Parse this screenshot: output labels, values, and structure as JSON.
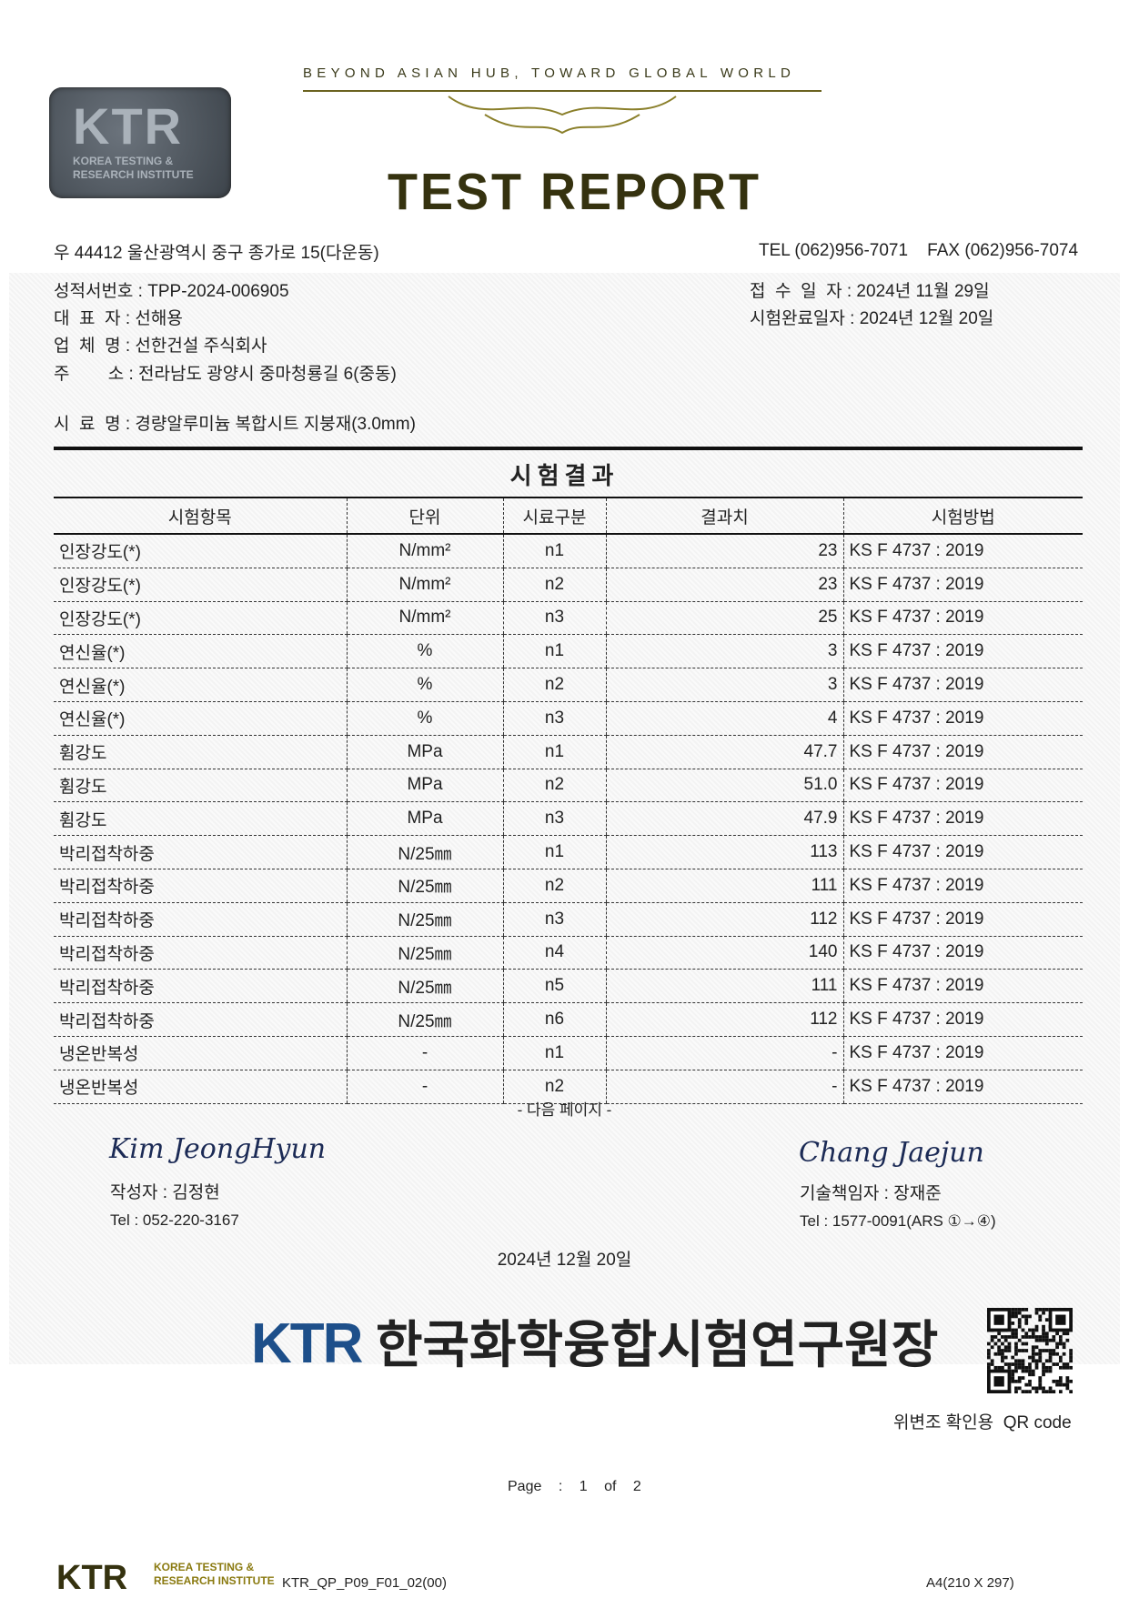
{
  "header": {
    "slogan": "BEYOND ASIAN HUB, TOWARD GLOBAL WORLD",
    "logo_text": "KTR",
    "logo_subtitle": "KOREA TESTING & RESEARCH INSTITUTE",
    "title": "TEST REPORT",
    "address": "우 44412 울산광역시 중구 종가로 15(다운동)",
    "contact": "TEL (062)956-7071    FAX (062)956-7074"
  },
  "info": {
    "report_no": "성적서번호 : TPP-2024-006905",
    "representative": "대  표  자 : 선해용",
    "company": "업  체  명 : 선한건설 주식회사",
    "address": "주        소 : 전라남도 광양시 중마청룡길 6(중동)",
    "sample": "시  료  명 : 경량알루미늄 복합시트 지붕재(3.0mm)",
    "received": "접  수  일  자 : 2024년 11월 29일",
    "completed": "시험완료일자 : 2024년 12월 20일"
  },
  "results": {
    "section_title": "시험결과",
    "columns": [
      "시험항목",
      "단위",
      "시료구분",
      "결과치",
      "시험방법"
    ],
    "rows": [
      [
        "인장강도(*)",
        "N/mm²",
        "n1",
        "23",
        "KS F 4737 : 2019"
      ],
      [
        "인장강도(*)",
        "N/mm²",
        "n2",
        "23",
        "KS F 4737 : 2019"
      ],
      [
        "인장강도(*)",
        "N/mm²",
        "n3",
        "25",
        "KS F 4737 : 2019"
      ],
      [
        "연신율(*)",
        "%",
        "n1",
        "3",
        "KS F 4737 : 2019"
      ],
      [
        "연신율(*)",
        "%",
        "n2",
        "3",
        "KS F 4737 : 2019"
      ],
      [
        "연신율(*)",
        "%",
        "n3",
        "4",
        "KS F 4737 : 2019"
      ],
      [
        "휨강도",
        "MPa",
        "n1",
        "47.7",
        "KS F 4737 : 2019"
      ],
      [
        "휨강도",
        "MPa",
        "n2",
        "51.0",
        "KS F 4737 : 2019"
      ],
      [
        "휨강도",
        "MPa",
        "n3",
        "47.9",
        "KS F 4737 : 2019"
      ],
      [
        "박리접착하중",
        "N/25㎜",
        "n1",
        "113",
        "KS F 4737 : 2019"
      ],
      [
        "박리접착하중",
        "N/25㎜",
        "n2",
        "111",
        "KS F 4737 : 2019"
      ],
      [
        "박리접착하중",
        "N/25㎜",
        "n3",
        "112",
        "KS F 4737 : 2019"
      ],
      [
        "박리접착하중",
        "N/25㎜",
        "n4",
        "140",
        "KS F 4737 : 2019"
      ],
      [
        "박리접착하중",
        "N/25㎜",
        "n5",
        "111",
        "KS F 4737 : 2019"
      ],
      [
        "박리접착하중",
        "N/25㎜",
        "n6",
        "112",
        "KS F 4737 : 2019"
      ],
      [
        "냉온반복성",
        "-",
        "n1",
        "-",
        "KS F 4737 : 2019"
      ],
      [
        "냉온반복성",
        "-",
        "n2",
        "-",
        "KS F 4737 : 2019"
      ]
    ],
    "next_page": "- 다음 페이지 -"
  },
  "signatures": {
    "author_signature": "Kim JeongHyun",
    "author": "작성자 : 김정현",
    "author_tel": "Tel : 052-220-3167",
    "tech_signature": "Chang Jaejun",
    "tech": "기술책임자 : 장재준",
    "tech_tel": "Tel : 1577-0091(ARS ①→④)"
  },
  "issue_date": "2024년 12월 20일",
  "issuer": {
    "logo": "KTR",
    "name": "한국화학융합시험연구원장",
    "brand_color": "#1d4f8a"
  },
  "qr_label": "위변조 확인용  QR code",
  "page": {
    "label": "Page :",
    "current": "1",
    "of": "of",
    "total": "2"
  },
  "footer": {
    "logo": "KTR",
    "logo_sub1": "KOREA TESTING &",
    "logo_sub2": "RESEARCH INSTITUTE",
    "form_code": "KTR_QP_P09_F01_02(00)",
    "paper": "A4(210 X 297)"
  }
}
